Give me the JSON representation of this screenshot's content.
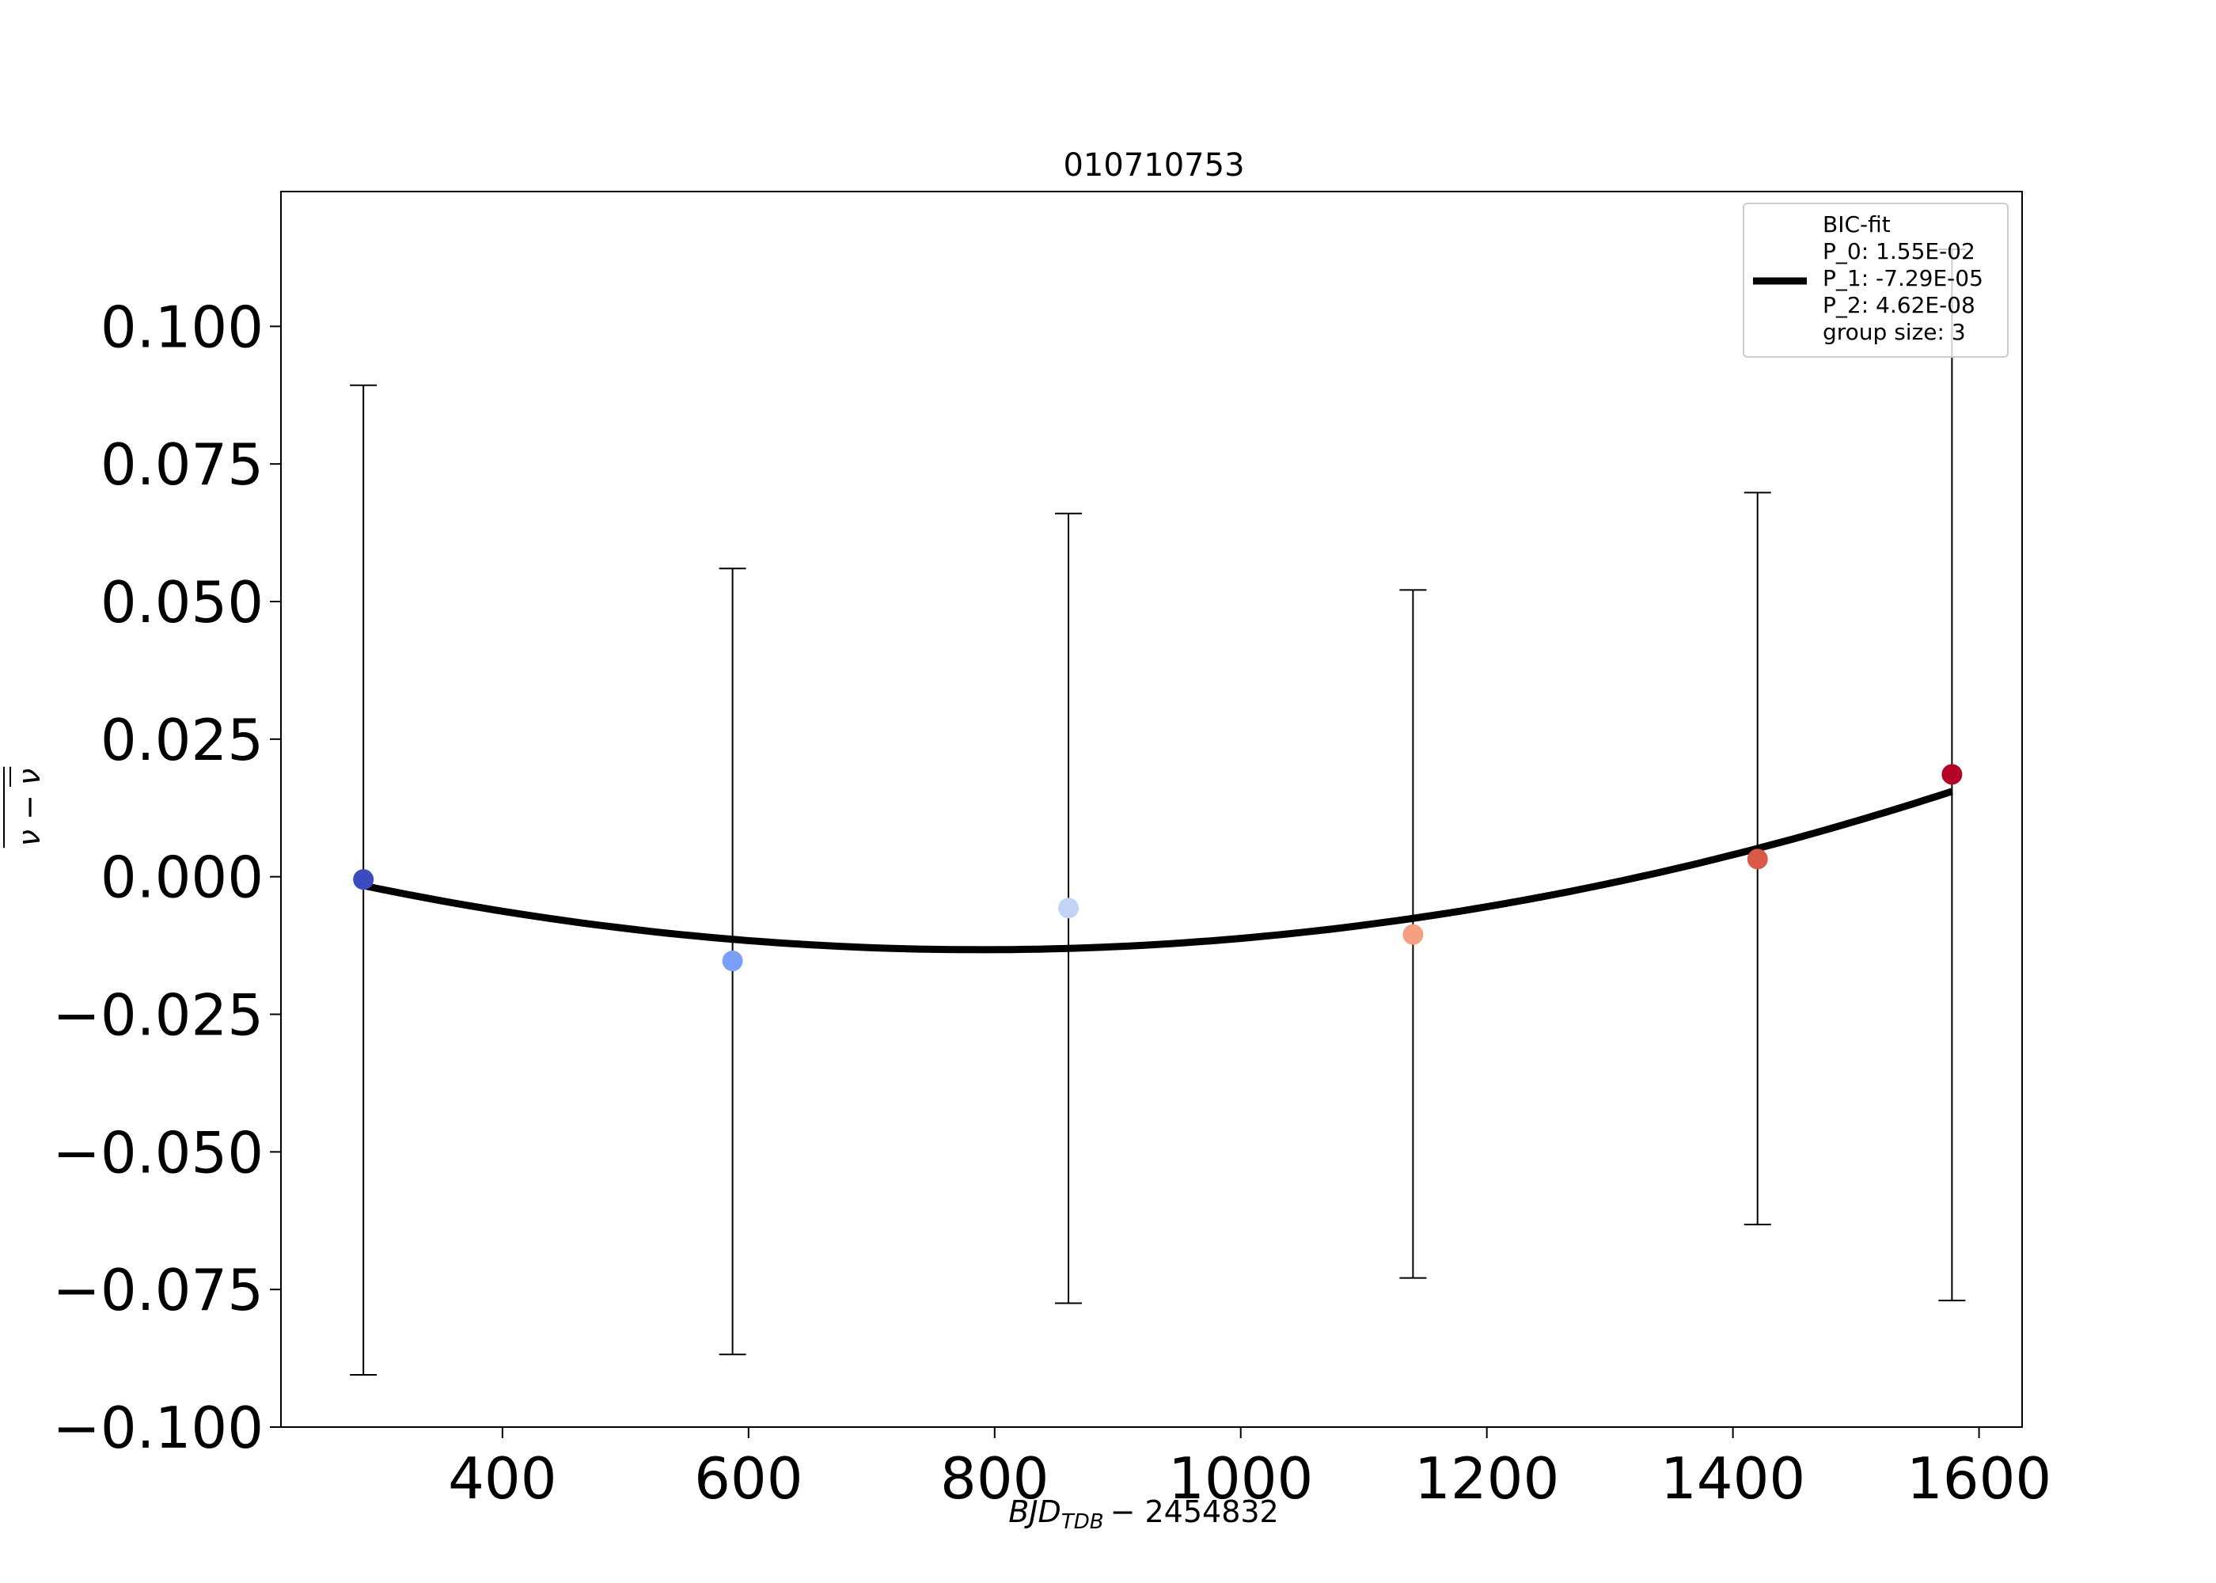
{
  "chart_data": {
    "type": "scatter",
    "title": "010710753",
    "xlabel": {
      "var": "BJD",
      "sub": "TDB",
      "rest": "− 2454832"
    },
    "ylabel": {
      "base": "ν − ",
      "bar": "ν"
    },
    "xlim": [
      220,
      1635
    ],
    "ylim": [
      -0.1,
      0.1245
    ],
    "xticks": [
      400,
      600,
      800,
      1000,
      1200,
      1400,
      1600
    ],
    "xtick_labels": [
      "400",
      "600",
      "800",
      "1000",
      "1200",
      "1400",
      "1600"
    ],
    "yticks": [
      0.1,
      0.075,
      0.05,
      0.025,
      0.0,
      -0.025,
      -0.05,
      -0.075,
      -0.1
    ],
    "ytick_labels": [
      "0.100",
      "0.075",
      "0.050",
      "0.025",
      "0.000",
      "−0.025",
      "−0.050",
      "−0.075",
      "−0.100"
    ],
    "points": [
      {
        "x": 287,
        "y": -0.0005,
        "yerr_low": -0.0905,
        "yerr_high": 0.0893,
        "color": "#3b4cc0"
      },
      {
        "x": 587,
        "y": -0.0153,
        "yerr_low": -0.0868,
        "yerr_high": 0.056,
        "color": "#7b9ff9"
      },
      {
        "x": 860,
        "y": -0.0057,
        "yerr_low": -0.0775,
        "yerr_high": 0.066,
        "color": "#c0d4f5"
      },
      {
        "x": 1140,
        "y": -0.0105,
        "yerr_low": -0.0729,
        "yerr_high": 0.0521,
        "color": "#f5a081"
      },
      {
        "x": 1420,
        "y": 0.0032,
        "yerr_low": -0.0632,
        "yerr_high": 0.0698,
        "color": "#d95847"
      },
      {
        "x": 1578,
        "y": 0.0186,
        "yerr_low": -0.077,
        "yerr_high": 0.114,
        "color": "#b40426"
      }
    ],
    "fit": {
      "name": "BIC-fit",
      "p0": 0.0155,
      "p1": -7.29e-05,
      "p2": 4.62e-08,
      "x_range": [
        287,
        1578
      ],
      "color": "#000000"
    },
    "legend": {
      "position": "upper right",
      "lines": [
        "BIC-fit",
        "P_0: 1.55E-02",
        "P_1: -7.29E-05",
        "P_2: 4.62E-08",
        "group size: 3"
      ]
    },
    "grid": false
  }
}
